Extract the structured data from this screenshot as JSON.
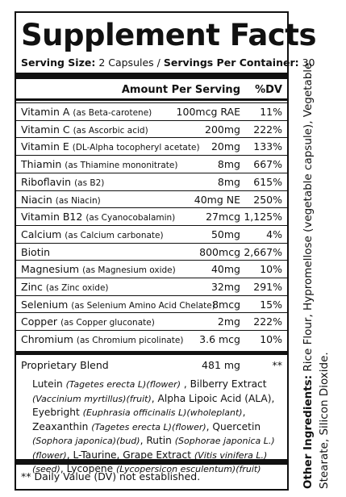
{
  "title": "Supplement Facts",
  "serving": {
    "size_label": "Serving Size:",
    "size": "2 Capsules /",
    "container_label": "Servings Per Container:",
    "container": "30"
  },
  "header": {
    "amount": "Amount Per Serving",
    "dv": "%DV"
  },
  "rows": [
    [
      "Vitamin A",
      "(as Beta-carotene)",
      "100mcg RAE",
      "11%"
    ],
    [
      "Vitamin C",
      "(as Ascorbic acid)",
      "200mg",
      "222%"
    ],
    [
      "Vitamin E",
      "(DL-Alpha tocopheryl acetate)",
      "20mg",
      "133%"
    ],
    [
      "Thiamin",
      "(as Thiamine mononitrate)",
      "8mg",
      "667%"
    ],
    [
      "Riboflavin",
      "(as B2)",
      "8mg",
      "615%"
    ],
    [
      "Niacin",
      "(as Niacin)",
      "40mg NE",
      "250%"
    ],
    [
      "Vitamin B12",
      "(as Cyanocobalamin)",
      "27mcg",
      "1,125%"
    ],
    [
      "Calcium",
      "(as Calcium carbonate)",
      "50mg",
      "4%"
    ],
    [
      "Biotin",
      "",
      "800mcg",
      "2,667%"
    ],
    [
      "Magnesium",
      "(as Magnesium oxide)",
      "40mg",
      "10%"
    ],
    [
      "Zinc",
      "(as Zinc oxide)",
      "32mg",
      "291%"
    ],
    [
      "Selenium",
      "(as Selenium Amino Acid Chelate)",
      "8mcg",
      "15%"
    ],
    [
      "Copper",
      "(as Copper gluconate)",
      "2mg",
      "222%"
    ],
    [
      "Chromium",
      "(as Chromium picolinate)",
      "3.6 mcg",
      "10%"
    ]
  ],
  "blend": {
    "name": "Proprietary Blend",
    "amount": "481 mg",
    "dv": "**",
    "segments": [
      {
        "text": "Lutein ",
        "italic": false
      },
      {
        "text": "(Tagetes erecta L)(flower)",
        "italic": true
      },
      {
        "text": " , Bilberry Extract ",
        "italic": false
      },
      {
        "text": "(Vaccinium myrtillus)(fruit)",
        "italic": true
      },
      {
        "text": ", Alpha Lipoic Acid (ALA), Eyebright ",
        "italic": false
      },
      {
        "text": "(Euphrasia officinalis L)(wholeplant)",
        "italic": true
      },
      {
        "text": ", Zeaxanthin ",
        "italic": false
      },
      {
        "text": "(Tagetes erecta L)(flower)",
        "italic": true
      },
      {
        "text": ", Quercetin ",
        "italic": false
      },
      {
        "text": "(Sophora japonica)(bud)",
        "italic": true
      },
      {
        "text": ", Rutin ",
        "italic": false
      },
      {
        "text": "(Sophorae japonica L.)(flower)",
        "italic": true
      },
      {
        "text": ", L-Taurine, Grape Extract ",
        "italic": false
      },
      {
        "text": "(Vitis vinifera L.)(seed)",
        "italic": true
      },
      {
        "text": ", Lycopene ",
        "italic": false
      },
      {
        "text": "(Lycopersicon esculentum)(fruit)",
        "italic": true
      }
    ]
  },
  "footnote": "** Daily Value (DV) not established.",
  "other_ingredients": {
    "label": "Other Ingredients:",
    "text": " Rice Flour, Hypromellose (vegetable capsule), Vegetable Stearate, Silicon Dioxide."
  }
}
